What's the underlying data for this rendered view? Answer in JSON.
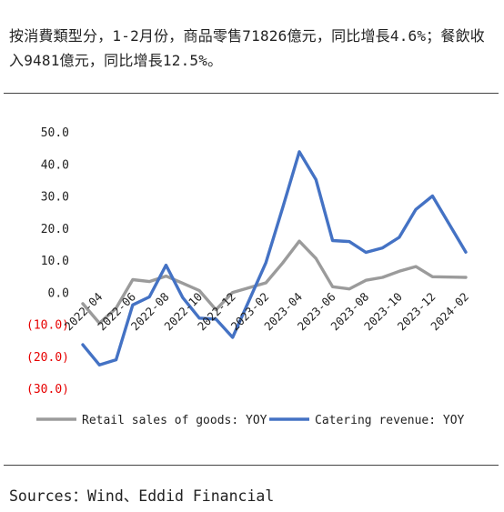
{
  "caption": "按消費類型分，1-2月份，商品零售71826億元，同比增長4.6%；餐飲收入9481億元，同比增長12.5%。",
  "source": "Sources：Wind、Eddid Financial",
  "colors": {
    "retail": "#9b9b9b",
    "catering": "#4472c4",
    "negative_tick": "#e60000",
    "tick": "#222222"
  },
  "chart_data": {
    "type": "line",
    "title": "",
    "xlabel": "",
    "ylabel": "",
    "ylim": [
      -30,
      50
    ],
    "yticks": [
      50,
      40,
      30,
      20,
      10,
      0,
      -10,
      -20,
      -30
    ],
    "ytick_labels": [
      "50.0",
      "40.0",
      "30.0",
      "20.0",
      "10.0",
      "0.0",
      "(10.0)",
      "(20.0)",
      "(30.0)"
    ],
    "grid": false,
    "legend": "bottom",
    "x": [
      "2022-03",
      "2022-04",
      "2022-05",
      "2022-06",
      "2022-07",
      "2022-08",
      "2022-09",
      "2022-10",
      "2022-11",
      "2022-12",
      "2023-01",
      "2023-02",
      "2023-03",
      "2023-04",
      "2023-05",
      "2023-06",
      "2023-07",
      "2023-08",
      "2023-09",
      "2023-10",
      "2023-11",
      "2023-12",
      "2024-01",
      "2024-02"
    ],
    "tick_labels": [
      "2022-04",
      "2022-06",
      "2022-08",
      "2022-10",
      "2022-12",
      "2023-02",
      "2023-04",
      "2023-06",
      "2023-08",
      "2023-10",
      "2023-12",
      "2024-02"
    ],
    "series": [
      {
        "name": "Retail sales of goods: YOY",
        "values": [
          -3.6,
          -9.7,
          -5.0,
          3.9,
          3.3,
          5.0,
          2.8,
          0.5,
          -5.5,
          -0.1,
          null,
          2.9,
          9.1,
          15.9,
          10.5,
          1.7,
          1.0,
          3.7,
          4.6,
          6.5,
          8.0,
          4.8,
          null,
          4.6
        ]
      },
      {
        "name": "Catering revenue: YOY",
        "values": [
          -16.4,
          -22.7,
          -21.1,
          -4.0,
          -1.5,
          8.4,
          -1.7,
          -8.1,
          -8.4,
          -14.1,
          null,
          9.2,
          26.3,
          43.8,
          35.1,
          16.1,
          15.8,
          12.4,
          13.8,
          17.1,
          25.8,
          30.0,
          null,
          12.5
        ]
      }
    ]
  }
}
